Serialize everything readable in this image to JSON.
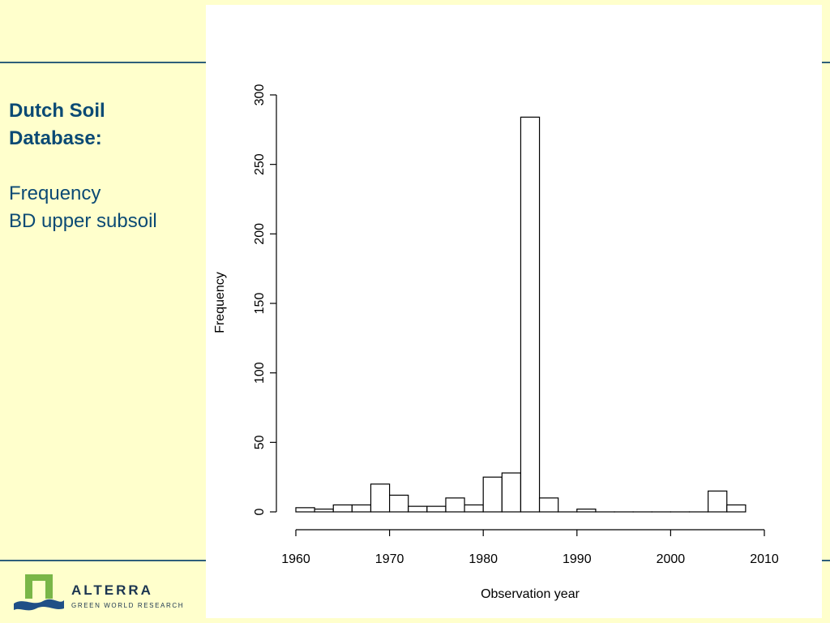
{
  "slide": {
    "title_lines": [
      "Dutch Soil",
      "Database:"
    ],
    "subtitle_lines": [
      "Frequency",
      "BD upper subsoil"
    ]
  },
  "logo": {
    "name": "ALTERRA",
    "tagline": "GREEN WORLD RESEARCH",
    "icon": "alterra-logo-icon"
  },
  "colors": {
    "background": "#ffffcc",
    "title": "#0b4a74",
    "rule": "#2e5f7a",
    "logo_green": "#7ab648",
    "logo_blue": "#1f4f86"
  },
  "chart_data": {
    "type": "bar",
    "title": "",
    "xlabel": "Observation year",
    "ylabel": "Frequency",
    "xlim": [
      1960,
      2010
    ],
    "ylim": [
      0,
      300
    ],
    "x_ticks": [
      1960,
      1970,
      1980,
      1990,
      2000,
      2010
    ],
    "y_ticks": [
      0,
      50,
      100,
      150,
      200,
      250,
      300
    ],
    "bin_width": 2,
    "bins": [
      {
        "start": 1960,
        "end": 1962,
        "count": 3
      },
      {
        "start": 1962,
        "end": 1964,
        "count": 2
      },
      {
        "start": 1964,
        "end": 1966,
        "count": 5
      },
      {
        "start": 1966,
        "end": 1968,
        "count": 5
      },
      {
        "start": 1968,
        "end": 1970,
        "count": 20
      },
      {
        "start": 1970,
        "end": 1972,
        "count": 12
      },
      {
        "start": 1972,
        "end": 1974,
        "count": 4
      },
      {
        "start": 1974,
        "end": 1976,
        "count": 4
      },
      {
        "start": 1976,
        "end": 1978,
        "count": 10
      },
      {
        "start": 1978,
        "end": 1980,
        "count": 5
      },
      {
        "start": 1980,
        "end": 1982,
        "count": 25
      },
      {
        "start": 1982,
        "end": 1984,
        "count": 28
      },
      {
        "start": 1984,
        "end": 1986,
        "count": 284
      },
      {
        "start": 1986,
        "end": 1988,
        "count": 10
      },
      {
        "start": 1988,
        "end": 1990,
        "count": 0
      },
      {
        "start": 1990,
        "end": 1992,
        "count": 2
      },
      {
        "start": 1992,
        "end": 1994,
        "count": 0
      },
      {
        "start": 1994,
        "end": 1996,
        "count": 0
      },
      {
        "start": 1996,
        "end": 1998,
        "count": 0
      },
      {
        "start": 1998,
        "end": 2000,
        "count": 0
      },
      {
        "start": 2000,
        "end": 2002,
        "count": 0
      },
      {
        "start": 2002,
        "end": 2004,
        "count": 0
      },
      {
        "start": 2004,
        "end": 2006,
        "count": 15
      },
      {
        "start": 2006,
        "end": 2008,
        "count": 5
      }
    ],
    "grid": false,
    "legend": "none"
  }
}
